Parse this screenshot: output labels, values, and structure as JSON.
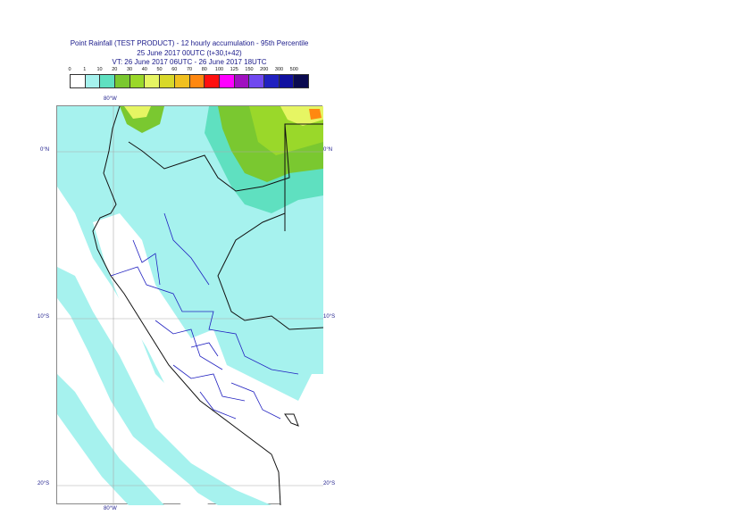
{
  "title": {
    "line1": "Point Rainfall (TEST PRODUCT) - 12 hourly accumulation - 95th Percentile",
    "line2": "25 June 2017 00UTC (t+30,t+42)",
    "line3": "VT: 26 June 2017 06UTC - 26 June 2017 18UTC"
  },
  "legend": {
    "labels": [
      "0",
      "1",
      "10",
      "20",
      "30",
      "40",
      "50",
      "60",
      "70",
      "80",
      "100",
      "125",
      "150",
      "200",
      "300",
      "500"
    ],
    "colors": [
      "#ffffff",
      "#a6f2ee",
      "#5fe0c0",
      "#7ac830",
      "#9ad82a",
      "#e6f563",
      "#d8d82a",
      "#f0c020",
      "#ff8810",
      "#ff1010",
      "#ff00ff",
      "#a010c0",
      "#7048f0",
      "#2020c0",
      "#1010a0",
      "#0a0a50"
    ]
  },
  "map_labels": {
    "lon_top": "80°W",
    "lon_bottom": "80°W",
    "lat_0_left": "0°N",
    "lat_0_right": "0°N",
    "lat_10_left": "10°S",
    "lat_10_right": "10°S",
    "lat_20_left": "20°S",
    "lat_20_right": "20°S"
  }
}
